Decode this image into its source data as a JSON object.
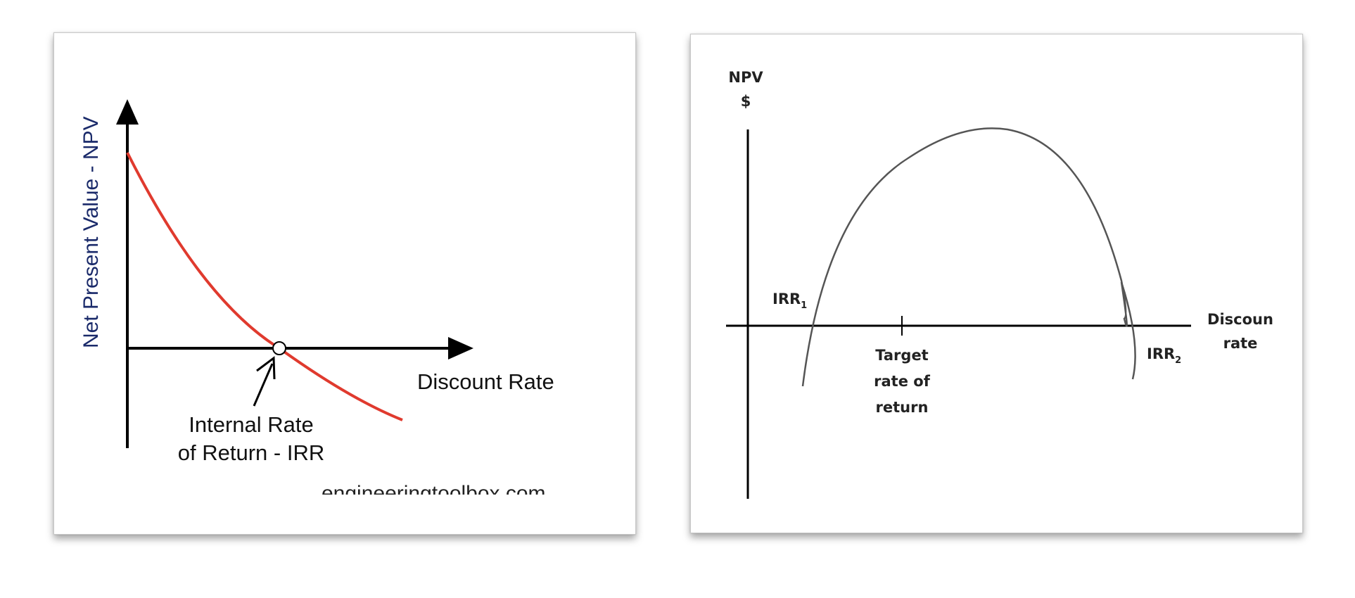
{
  "left_diagram": {
    "y_axis_label": "Net Present Value - NPV",
    "x_axis_label": "Discount Rate",
    "irr_label_line1": "Internal Rate",
    "irr_label_line2": "of Return - IRR",
    "watermark": "engineeringtoolbox.com",
    "curve_color": "#e03a2e",
    "axis_color": "#000000"
  },
  "right_diagram": {
    "y_axis_label_line1": "NPV",
    "y_axis_label_line2": "$",
    "x_axis_label_line1": "Discoun",
    "x_axis_label_line2": "rate",
    "irr1_base": "IRR",
    "irr1_sub": "1",
    "irr2_base": "IRR",
    "irr2_sub": "2",
    "target_line1": "Target",
    "target_line2": "rate of",
    "target_line3": "return",
    "curve_color": "#555555",
    "axis_color": "#000000"
  }
}
